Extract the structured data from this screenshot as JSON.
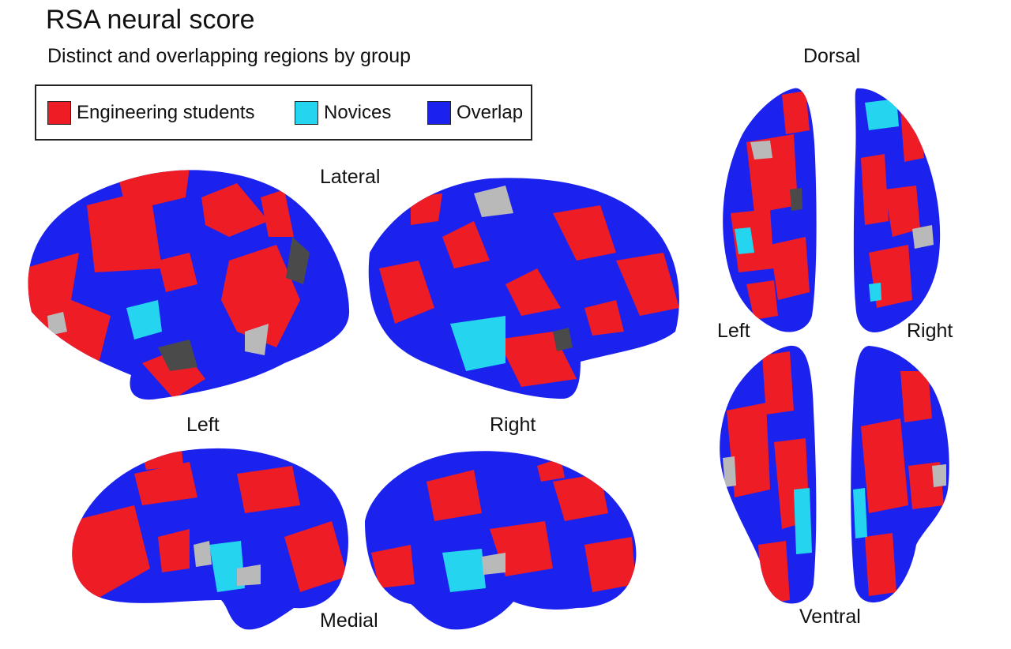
{
  "title": "RSA neural score",
  "subtitle": "Distinct and overlapping regions by group",
  "legend": {
    "items": [
      {
        "label": "Engineering students",
        "color": "#ee1c25"
      },
      {
        "label": "Novices",
        "color": "#25d5f0"
      },
      {
        "label": "Overlap",
        "color": "#1c22ee"
      }
    ]
  },
  "views": {
    "lateral": "Lateral",
    "medial": "Medial",
    "dorsal": "Dorsal",
    "ventral": "Ventral",
    "left": "Left",
    "right": "Right",
    "left_dv": "Left",
    "right_dv": "Right"
  },
  "colors": {
    "engineering": "#ee1c25",
    "novices": "#25d5f0",
    "overlap": "#1c22ee",
    "gray_light": "#b9b9b9",
    "gray_dark": "#4a4a4a"
  }
}
